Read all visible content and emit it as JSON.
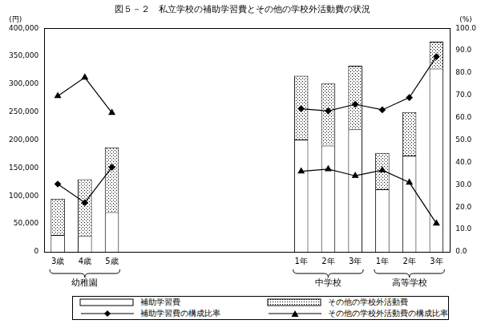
{
  "chart_data": {
    "type": "bar",
    "title": "図５－２　私立学校の補助学習費とその他の学校外活動費の状況",
    "ylabel": "(円)",
    "y2label": "(%)",
    "categories": [
      "3歳",
      "4歳",
      "5歳",
      null,
      null,
      null,
      null,
      null,
      null,
      "1年",
      "2年",
      "3年",
      "1年",
      "2年",
      "3年"
    ],
    "groups": [
      {
        "label": "幼稚園",
        "from": 0,
        "to": 2
      },
      {
        "label": "中学校",
        "from": 9,
        "to": 11
      },
      {
        "label": "高等学校",
        "from": 12,
        "to": 14
      }
    ],
    "stacked": true,
    "grid": false,
    "legend": "bottom",
    "ylim": [
      0,
      400000
    ],
    "yticks": [
      0,
      {
        "value": 50000,
        "label": "50,000"
      },
      {
        "value": 100000,
        "label": "100,000"
      },
      {
        "value": 150000,
        "label": "150,000"
      },
      {
        "value": 200000,
        "label": "200,000"
      },
      {
        "value": 250000,
        "label": "250,000"
      },
      {
        "value": 300000,
        "label": "300,000"
      },
      {
        "value": 350000,
        "label": "350,000"
      },
      {
        "value": 400000,
        "label": "400,000"
      }
    ],
    "y2lim": [
      0,
      100
    ],
    "y2ticks": [
      {
        "value": 0,
        "label": "0.0"
      },
      {
        "value": 10,
        "label": "10.0"
      },
      {
        "value": 20,
        "label": "20.0"
      },
      {
        "value": 30,
        "label": "30.0"
      },
      {
        "value": 40,
        "label": "40.0"
      },
      {
        "value": 50,
        "label": "50.0"
      },
      {
        "value": 60,
        "label": "60.0"
      },
      {
        "value": 70,
        "label": "70.0"
      },
      {
        "value": 80,
        "label": "80.0"
      },
      {
        "value": 90,
        "label": "90.0"
      },
      {
        "value": 100,
        "label": "100.0"
      }
    ],
    "series": [
      {
        "name": "補助学習費",
        "type": "bar",
        "color": "#ffffff",
        "values": [
          30000,
          29000,
          71000,
          null,
          null,
          null,
          null,
          null,
          null,
          201000,
          190000,
          219000,
          112000,
          172000,
          328000
        ]
      },
      {
        "name": "その他の学校外活動費",
        "type": "bar",
        "color": "#000000",
        "values": [
          65000,
          101000,
          116000,
          null,
          null,
          null,
          null,
          null,
          null,
          114000,
          111000,
          114000,
          65000,
          78000,
          48000
        ]
      },
      {
        "name": "補助学習費の構成比率",
        "type": "line",
        "axis": "y2",
        "color": "#000000",
        "marker": "diamond",
        "values": [
          30.3,
          22,
          37.8,
          null,
          null,
          null,
          null,
          null,
          null,
          64,
          63,
          66,
          63.5,
          69,
          87.3
        ]
      },
      {
        "name": "その他の学校外活動費の構成比率",
        "type": "line",
        "axis": "y2",
        "color": "#000000",
        "marker": "triangle",
        "values": [
          69.7,
          78,
          62.2,
          null,
          null,
          null,
          null,
          null,
          null,
          36,
          37,
          34,
          36.5,
          31,
          12.7
        ]
      }
    ]
  }
}
